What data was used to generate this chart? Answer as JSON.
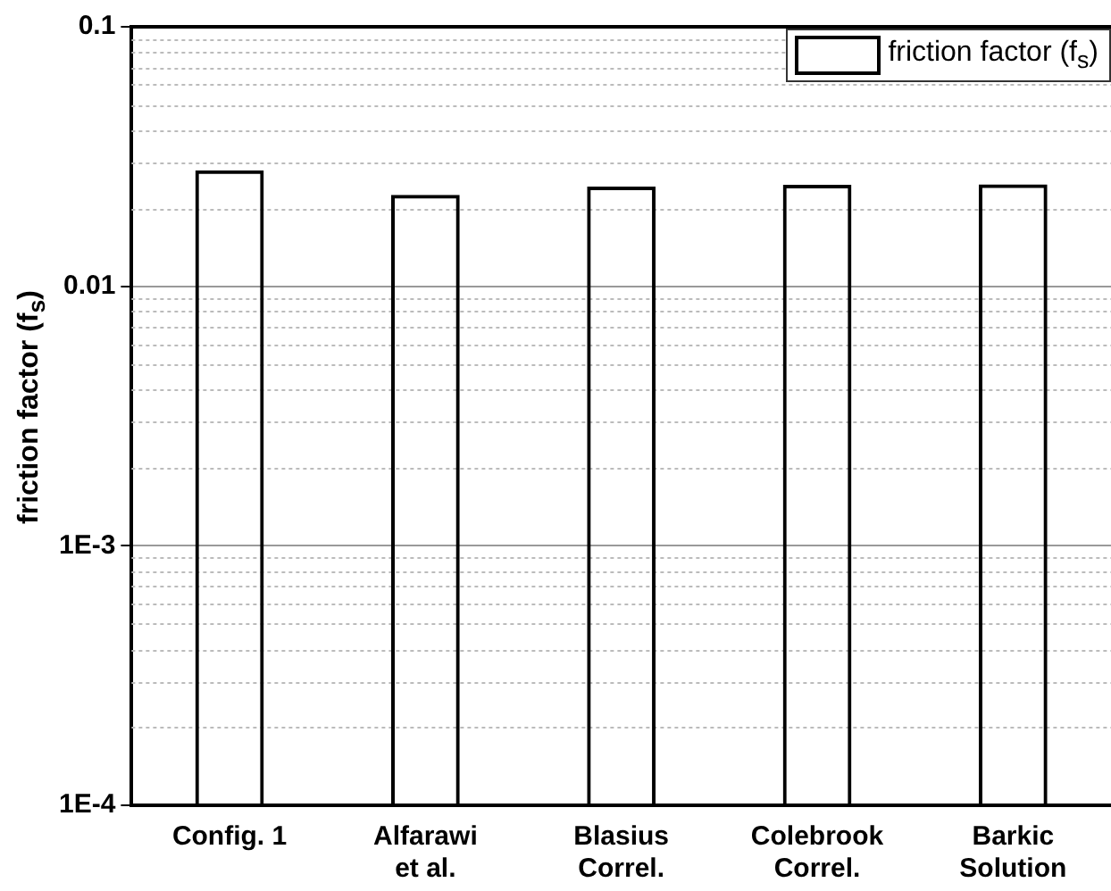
{
  "chart_data": {
    "type": "bar",
    "ylabel": "friction factor (f$_{s}$)",
    "categories": [
      "Config. 1",
      "Alfarawi\net al.",
      "Blasius\nCorrel.",
      "Colebrook\nCorrel.",
      "Barkic\nSolution"
    ],
    "series": [
      {
        "name": "friction factor (f$_{s}$)",
        "color": "#000000",
        "values": [
          0.028,
          0.0225,
          0.0242,
          0.0246,
          0.0247
        ]
      }
    ],
    "log": "y",
    "ylim": [
      0.0001,
      0.1
    ],
    "yticks": [
      {
        "value": 0.0001,
        "label": "1E-4"
      },
      {
        "value": 0.001,
        "label": "1E-3"
      },
      0.01,
      0.1
    ],
    "grid": "y",
    "legend": "top right"
  }
}
